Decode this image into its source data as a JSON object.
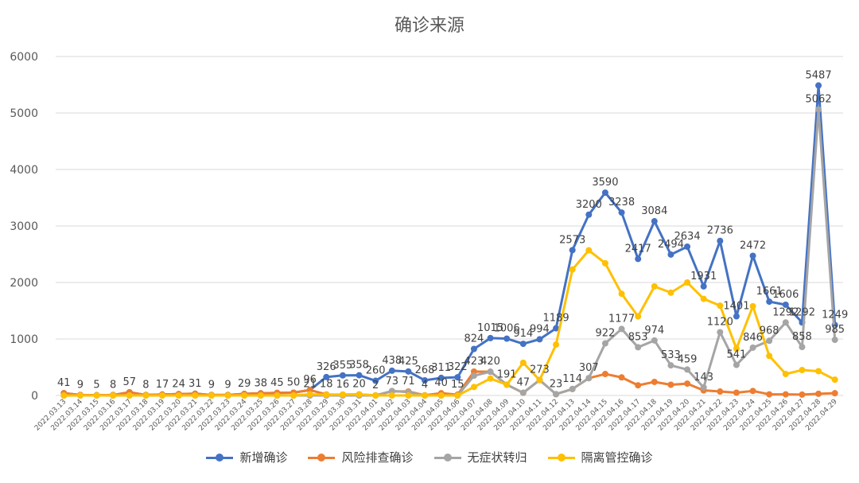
{
  "chart_data": {
    "type": "line",
    "title": "确诊来源",
    "xlabel": "",
    "ylabel": "",
    "ylim": [
      0,
      6000
    ],
    "yticks": [
      0,
      1000,
      2000,
      3000,
      4000,
      5000,
      6000
    ],
    "grid": true,
    "legend_position": "bottom",
    "categories": [
      "2022.03.13",
      "2022.03.14",
      "2022.03.15",
      "2022.03.16",
      "2022.03.17",
      "2022.03.18",
      "2022.03.19",
      "2022.03.20",
      "2022.03.21",
      "2022.03.22",
      "2022.03.23",
      "2022.03.24",
      "2022.03.25",
      "2022.03.26",
      "2022.03.27",
      "2022.03.28",
      "2022.03.29",
      "2022.03.30",
      "2022.03.31",
      "2022.04.01",
      "2022.04.02",
      "2022.04.03",
      "2022.04.04",
      "2022.04.05",
      "2022.04.06",
      "2022.04.07",
      "2022.04.08",
      "2022.04.09",
      "2022.04.10",
      "2022.04.11",
      "2022.04.12",
      "2022.04.13",
      "2022.04.14",
      "2022.04.15",
      "2022.04.16",
      "2022.04.17",
      "2022.04.18",
      "2022.04.19",
      "2022.04.20",
      "2022.04.21",
      "2022.04.22",
      "2022.04.23",
      "2022.04.24",
      "2022.04.25",
      "2022.04.26",
      "2022.04.27",
      "2022.04.28",
      "2022.04.29"
    ],
    "series": [
      {
        "name": "新增确诊",
        "color": "#4472C4",
        "values": [
          41,
          9,
          5,
          8,
          57,
          8,
          17,
          24,
          31,
          9,
          9,
          29,
          38,
          45,
          50,
          96,
          326,
          355,
          358,
          260,
          438,
          425,
          268,
          311,
          322,
          824,
          1015,
          1006,
          914,
          994,
          1189,
          2573,
          3200,
          3590,
          3238,
          2417,
          3084,
          2494,
          2634,
          1931,
          2736,
          1401,
          2472,
          1661,
          1606,
          1292,
          5487,
          1249
        ]
      },
      {
        "name": "风险排查确诊",
        "color": "#ED7D31",
        "values": [
          41,
          9,
          5,
          8,
          57,
          8,
          17,
          24,
          31,
          9,
          9,
          29,
          38,
          45,
          50,
          96,
          18,
          16,
          20,
          2,
          73,
          71,
          4,
          40,
          15,
          423,
          420,
          191,
          47,
          273,
          23,
          114,
          307,
          380,
          320,
          180,
          240,
          190,
          210,
          90,
          70,
          50,
          80,
          20,
          20,
          15,
          30,
          40
        ]
      },
      {
        "name": "无症状转归",
        "color": "#A5A5A5",
        "values": [
          0,
          0,
          0,
          0,
          0,
          0,
          0,
          0,
          0,
          0,
          0,
          0,
          0,
          0,
          0,
          0,
          0,
          0,
          0,
          0,
          80,
          60,
          0,
          0,
          0,
          350,
          420,
          191,
          47,
          273,
          23,
          114,
          307,
          922,
          1177,
          853,
          974,
          533,
          459,
          143,
          1120,
          541,
          846,
          968,
          1292,
          858,
          5062,
          985
        ]
      },
      {
        "name": "隔离管控确诊",
        "color": "#FFC000",
        "values": [
          0,
          0,
          0,
          0,
          0,
          0,
          0,
          0,
          0,
          0,
          0,
          0,
          0,
          0,
          0,
          21,
          13,
          16,
          20,
          0,
          0,
          0,
          0,
          0,
          0,
          150,
          300,
          191,
          580,
          273,
          900,
          2230,
          2570,
          2340,
          1800,
          1400,
          1930,
          1820,
          2000,
          1710,
          1590,
          830,
          1580,
          700,
          380,
          450,
          430,
          280
        ]
      }
    ],
    "data_labels": [
      {
        "series": 0,
        "i": 0,
        "text": "41"
      },
      {
        "series": 0,
        "i": 1,
        "text": "9"
      },
      {
        "series": 0,
        "i": 2,
        "text": "5"
      },
      {
        "series": 0,
        "i": 3,
        "text": "8"
      },
      {
        "series": 0,
        "i": 4,
        "text": "57"
      },
      {
        "series": 0,
        "i": 5,
        "text": "8"
      },
      {
        "series": 0,
        "i": 6,
        "text": "17"
      },
      {
        "series": 0,
        "i": 7,
        "text": "24"
      },
      {
        "series": 0,
        "i": 8,
        "text": "31"
      },
      {
        "series": 0,
        "i": 9,
        "text": "9"
      },
      {
        "series": 0,
        "i": 10,
        "text": "9"
      },
      {
        "series": 0,
        "i": 11,
        "text": "29"
      },
      {
        "series": 0,
        "i": 12,
        "text": "38"
      },
      {
        "series": 0,
        "i": 13,
        "text": "45"
      },
      {
        "series": 0,
        "i": 14,
        "text": "50"
      },
      {
        "series": 0,
        "i": 15,
        "text": "96"
      },
      {
        "series": 0,
        "i": 16,
        "text": "326"
      },
      {
        "series": 0,
        "i": 17,
        "text": "355"
      },
      {
        "series": 0,
        "i": 18,
        "text": "358"
      },
      {
        "series": 0,
        "i": 19,
        "text": "260"
      },
      {
        "series": 0,
        "i": 20,
        "text": "438"
      },
      {
        "series": 0,
        "i": 21,
        "text": "425"
      },
      {
        "series": 0,
        "i": 22,
        "text": "268"
      },
      {
        "series": 0,
        "i": 23,
        "text": "311"
      },
      {
        "series": 0,
        "i": 24,
        "text": "322"
      },
      {
        "series": 0,
        "i": 25,
        "text": "824"
      },
      {
        "series": 0,
        "i": 26,
        "text": "1015"
      },
      {
        "series": 0,
        "i": 27,
        "text": "1006"
      },
      {
        "series": 0,
        "i": 28,
        "text": "914"
      },
      {
        "series": 0,
        "i": 29,
        "text": "994"
      },
      {
        "series": 0,
        "i": 30,
        "text": "1189"
      },
      {
        "series": 0,
        "i": 31,
        "text": "2573"
      },
      {
        "series": 0,
        "i": 32,
        "text": "3200"
      },
      {
        "series": 0,
        "i": 33,
        "text": "3590"
      },
      {
        "series": 0,
        "i": 34,
        "text": "3238"
      },
      {
        "series": 0,
        "i": 35,
        "text": "2417"
      },
      {
        "series": 0,
        "i": 36,
        "text": "3084"
      },
      {
        "series": 0,
        "i": 37,
        "text": "2494"
      },
      {
        "series": 0,
        "i": 38,
        "text": "2634"
      },
      {
        "series": 0,
        "i": 39,
        "text": "1931"
      },
      {
        "series": 0,
        "i": 40,
        "text": "2736"
      },
      {
        "series": 0,
        "i": 41,
        "text": "1401"
      },
      {
        "series": 0,
        "i": 42,
        "text": "2472"
      },
      {
        "series": 0,
        "i": 43,
        "text": "1661"
      },
      {
        "series": 0,
        "i": 44,
        "text": "1606"
      },
      {
        "series": 0,
        "i": 45,
        "text": "1292"
      },
      {
        "series": 0,
        "i": 46,
        "text": "5487"
      },
      {
        "series": 0,
        "i": 47,
        "text": "1249"
      },
      {
        "series": 1,
        "i": 16,
        "text": "18"
      },
      {
        "series": 1,
        "i": 17,
        "text": "16"
      },
      {
        "series": 1,
        "i": 18,
        "text": "20"
      },
      {
        "series": 1,
        "i": 19,
        "text": "2"
      },
      {
        "series": 1,
        "i": 20,
        "text": "73"
      },
      {
        "series": 1,
        "i": 21,
        "text": "71"
      },
      {
        "series": 1,
        "i": 22,
        "text": "4"
      },
      {
        "series": 1,
        "i": 23,
        "text": "40"
      },
      {
        "series": 1,
        "i": 24,
        "text": "15"
      },
      {
        "series": 1,
        "i": 25,
        "text": "423"
      },
      {
        "series": 1,
        "i": 26,
        "text": "420"
      },
      {
        "series": 1,
        "i": 27,
        "text": "191"
      },
      {
        "series": 1,
        "i": 28,
        "text": "47"
      },
      {
        "series": 1,
        "i": 29,
        "text": "273"
      },
      {
        "series": 1,
        "i": 30,
        "text": "23"
      },
      {
        "series": 1,
        "i": 31,
        "text": "114"
      },
      {
        "series": 1,
        "i": 32,
        "text": "307"
      },
      {
        "series": 2,
        "i": 33,
        "text": "922"
      },
      {
        "series": 2,
        "i": 34,
        "text": "1177"
      },
      {
        "series": 2,
        "i": 35,
        "text": "853"
      },
      {
        "series": 2,
        "i": 36,
        "text": "974"
      },
      {
        "series": 2,
        "i": 37,
        "text": "533"
      },
      {
        "series": 2,
        "i": 38,
        "text": "459"
      },
      {
        "series": 2,
        "i": 39,
        "text": "143"
      },
      {
        "series": 2,
        "i": 40,
        "text": "1120"
      },
      {
        "series": 2,
        "i": 41,
        "text": "541"
      },
      {
        "series": 2,
        "i": 42,
        "text": "846"
      },
      {
        "series": 2,
        "i": 43,
        "text": "968"
      },
      {
        "series": 2,
        "i": 44,
        "text": "1292"
      },
      {
        "series": 2,
        "i": 45,
        "text": "858"
      },
      {
        "series": 2,
        "i": 46,
        "text": "5062"
      },
      {
        "series": 2,
        "i": 47,
        "text": "985"
      },
      {
        "series": 3,
        "i": 15,
        "text": "21"
      }
    ]
  }
}
